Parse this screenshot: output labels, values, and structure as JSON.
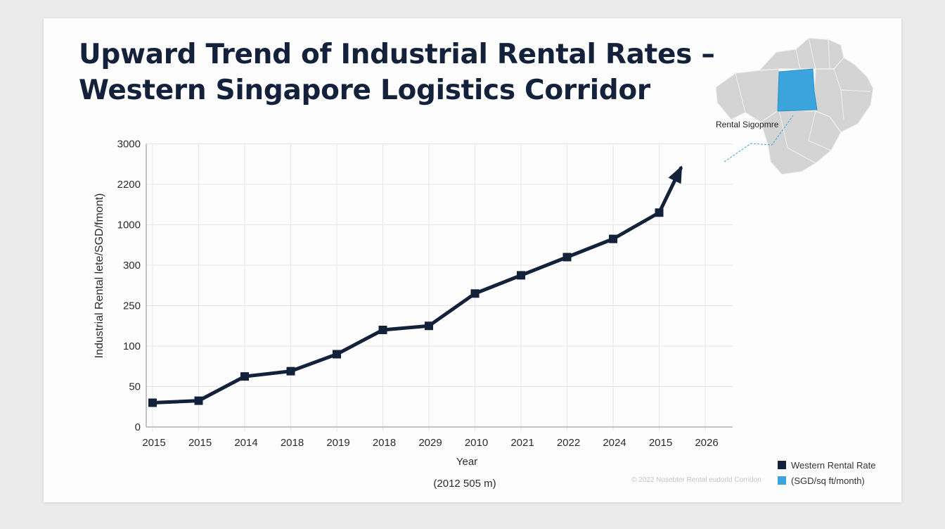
{
  "title_lines": [
    "Upward Trend of Industrial Rental Rates –",
    "Western Singapore Logistics Corridor"
  ],
  "map": {
    "label": "Rental Sigopmre",
    "highlight_color": "#3ba4dd"
  },
  "legend": {
    "items": [
      {
        "label": "Western Rental Rate",
        "color": "#13223a"
      },
      {
        "label": "(SGD/sq  ft/month)",
        "color": "#3ba4dd"
      }
    ]
  },
  "footnote": "© 2022 Nosebter Rental eudorld Corridon",
  "chart_data": {
    "type": "line",
    "title": "Upward Trend of Industrial Rental Rates – Western Singapore Logistics Corridor",
    "xlabel": "Year",
    "xlabel_sub": "(2012 505 m)",
    "ylabel": "Industrial Rental lete/SGD/fmont)",
    "x_tick_labels": [
      "2015",
      "2015",
      "2014",
      "2018",
      "2019",
      "2018",
      "2029",
      "2010",
      "2021",
      "2022",
      "2024",
      "2015",
      "2026"
    ],
    "y_tick_labels": [
      "0",
      "50",
      "100",
      "250",
      "300",
      "1000",
      "2200",
      "3000"
    ],
    "series": [
      {
        "name": "Western Rental Rate",
        "color": "#13223a",
        "values": [
          0.6,
          0.65,
          1.25,
          1.38,
          1.8,
          2.4,
          2.5,
          3.3,
          3.75,
          4.2,
          4.65,
          5.3
        ]
      }
    ],
    "arrow_end_value": 6.4,
    "value_units": "y-axis tick positions (0 = first tick '0', 7 = last tick '3000'); axis labels are non-linear",
    "grid": true
  }
}
